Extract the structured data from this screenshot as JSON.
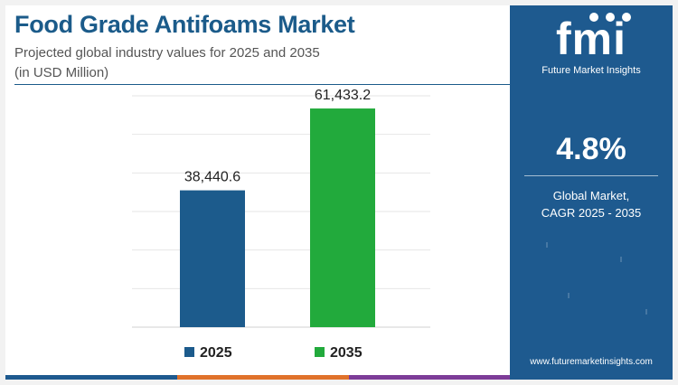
{
  "header": {
    "title": "Food Grade Antifoams Market",
    "subtitle": "Projected global industry values for 2025 and 2035",
    "unit": "(in USD Million)"
  },
  "chart_data": {
    "type": "bar",
    "categories": [
      "2025",
      "2035"
    ],
    "values": [
      38440.6,
      61433.2
    ],
    "value_labels": [
      "38,440.6",
      "61,433.2"
    ],
    "colors": [
      "#1c5b8c",
      "#22aa3c"
    ],
    "legend": [
      "2025",
      "2035"
    ],
    "legend_position": "bottom",
    "ylim": [
      0,
      65000
    ],
    "grid": true,
    "title": "Food Grade Antifoams Market",
    "xlabel": "",
    "ylabel": ""
  },
  "side_panel": {
    "logo_text": "fmi",
    "logo_subtitle": "Future Market Insights",
    "cagr_value": "4.8%",
    "cagr_line1": "Global Market,",
    "cagr_line2": "CAGR 2025 - 2035",
    "website": "www.futuremarketinsights.com"
  },
  "colors": {
    "title": "#1b5b8a",
    "panel_bg": "#1e5a8f",
    "bar_2025": "#1c5b8c",
    "bar_2035": "#22aa3c"
  }
}
